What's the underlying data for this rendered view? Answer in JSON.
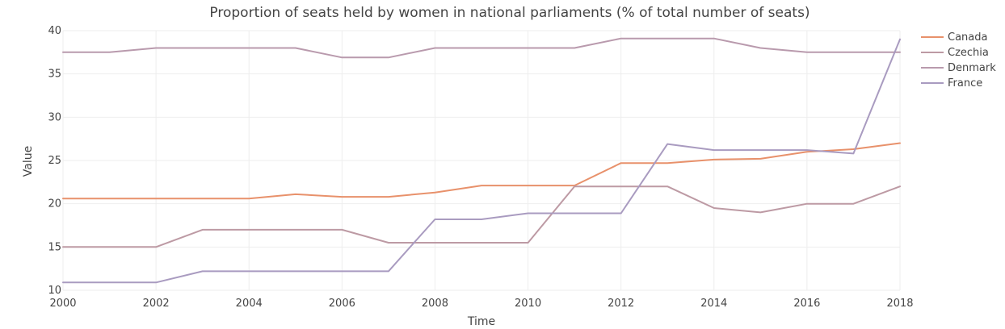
{
  "chart_data": {
    "type": "line",
    "title": "Proportion of seats held by women in national parliaments (% of total number of seats)",
    "xlabel": "Time",
    "ylabel": "Value",
    "xlim": [
      2000,
      2018
    ],
    "ylim": [
      10,
      40
    ],
    "x_ticks": [
      2000,
      2002,
      2004,
      2006,
      2008,
      2010,
      2012,
      2014,
      2016,
      2018
    ],
    "y_ticks": [
      10,
      15,
      20,
      25,
      30,
      35,
      40
    ],
    "grid": true,
    "legend_position": "top-right",
    "x": [
      2000,
      2001,
      2002,
      2003,
      2004,
      2005,
      2006,
      2007,
      2008,
      2009,
      2010,
      2011,
      2012,
      2013,
      2014,
      2015,
      2016,
      2017,
      2018
    ],
    "series": [
      {
        "name": "Canada",
        "color": "#e8916b",
        "values": [
          20.6,
          20.6,
          20.6,
          20.6,
          20.6,
          21.1,
          20.8,
          20.8,
          21.3,
          22.1,
          22.1,
          22.1,
          24.7,
          24.7,
          25.1,
          25.2,
          26.0,
          26.3,
          27.0
        ]
      },
      {
        "name": "Czechia",
        "color": "#bd9aa4",
        "values": [
          15.0,
          15.0,
          15.0,
          17.0,
          17.0,
          17.0,
          17.0,
          15.5,
          15.5,
          15.5,
          15.5,
          22.0,
          22.0,
          22.0,
          19.5,
          19.0,
          20.0,
          20.0,
          22.0
        ]
      },
      {
        "name": "Denmark",
        "color": "#b99aad",
        "values": [
          37.5,
          37.5,
          38.0,
          38.0,
          38.0,
          38.0,
          36.9,
          36.9,
          38.0,
          38.0,
          38.0,
          38.0,
          39.1,
          39.1,
          39.1,
          38.0,
          37.5,
          37.5,
          37.5
        ]
      },
      {
        "name": "France",
        "color": "#a99bc0",
        "values": [
          10.9,
          10.9,
          10.9,
          12.2,
          12.2,
          12.2,
          12.2,
          12.2,
          18.2,
          18.2,
          18.9,
          18.9,
          18.9,
          26.9,
          26.2,
          26.2,
          26.2,
          25.8,
          39.0
        ]
      }
    ]
  }
}
